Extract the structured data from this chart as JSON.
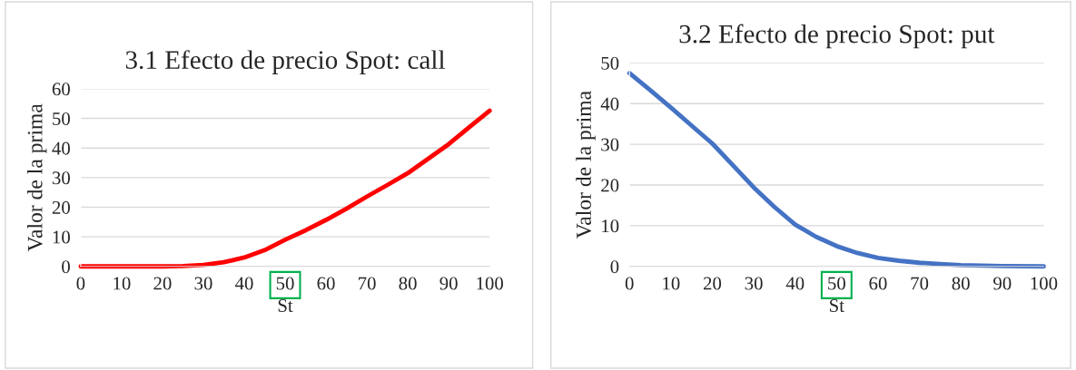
{
  "chart_data": [
    {
      "type": "line",
      "title": "3.1 Efecto de precio Spot: call",
      "xlabel": "St",
      "ylabel": "Valor de la prima",
      "xlim": [
        0,
        100
      ],
      "xticks": [
        0,
        10,
        20,
        30,
        40,
        50,
        60,
        70,
        80,
        90,
        100
      ],
      "ylim": [
        0,
        60
      ],
      "yticks": [
        0,
        10,
        20,
        30,
        40,
        50,
        60
      ],
      "grid": "y",
      "legend": false,
      "x": [
        0,
        10,
        20,
        25,
        30,
        35,
        40,
        45,
        50,
        55,
        60,
        65,
        70,
        75,
        80,
        85,
        90,
        95,
        100
      ],
      "series": [
        {
          "color": "#ff0000",
          "values": [
            0,
            0,
            0,
            0.1,
            0.5,
            1.4,
            3,
            5.5,
            9,
            12.2,
            15.7,
            19.5,
            23.6,
            27.5,
            31.5,
            36.4,
            41.3,
            47,
            52.6
          ]
        }
      ]
    },
    {
      "type": "line",
      "title": "3.2 Efecto de precio Spot: put",
      "xlabel": "St",
      "ylabel": "Valor de la prima",
      "xlim": [
        0,
        100
      ],
      "xticks": [
        0,
        10,
        20,
        30,
        40,
        50,
        60,
        70,
        80,
        90,
        100
      ],
      "ylim": [
        0,
        50
      ],
      "yticks": [
        0,
        10,
        20,
        30,
        40,
        50
      ],
      "grid": "y",
      "legend": false,
      "x": [
        0,
        5,
        10,
        15,
        20,
        25,
        30,
        35,
        40,
        45,
        50,
        55,
        60,
        65,
        70,
        75,
        80,
        90,
        100
      ],
      "series": [
        {
          "color": "#4472c4",
          "values": [
            47.5,
            43.3,
            39,
            34.6,
            30.2,
            24.8,
            19.4,
            14.6,
            10.3,
            7.3,
            5,
            3.3,
            2.1,
            1.4,
            0.9,
            0.6,
            0.3,
            0.1,
            0
          ]
        }
      ]
    }
  ]
}
